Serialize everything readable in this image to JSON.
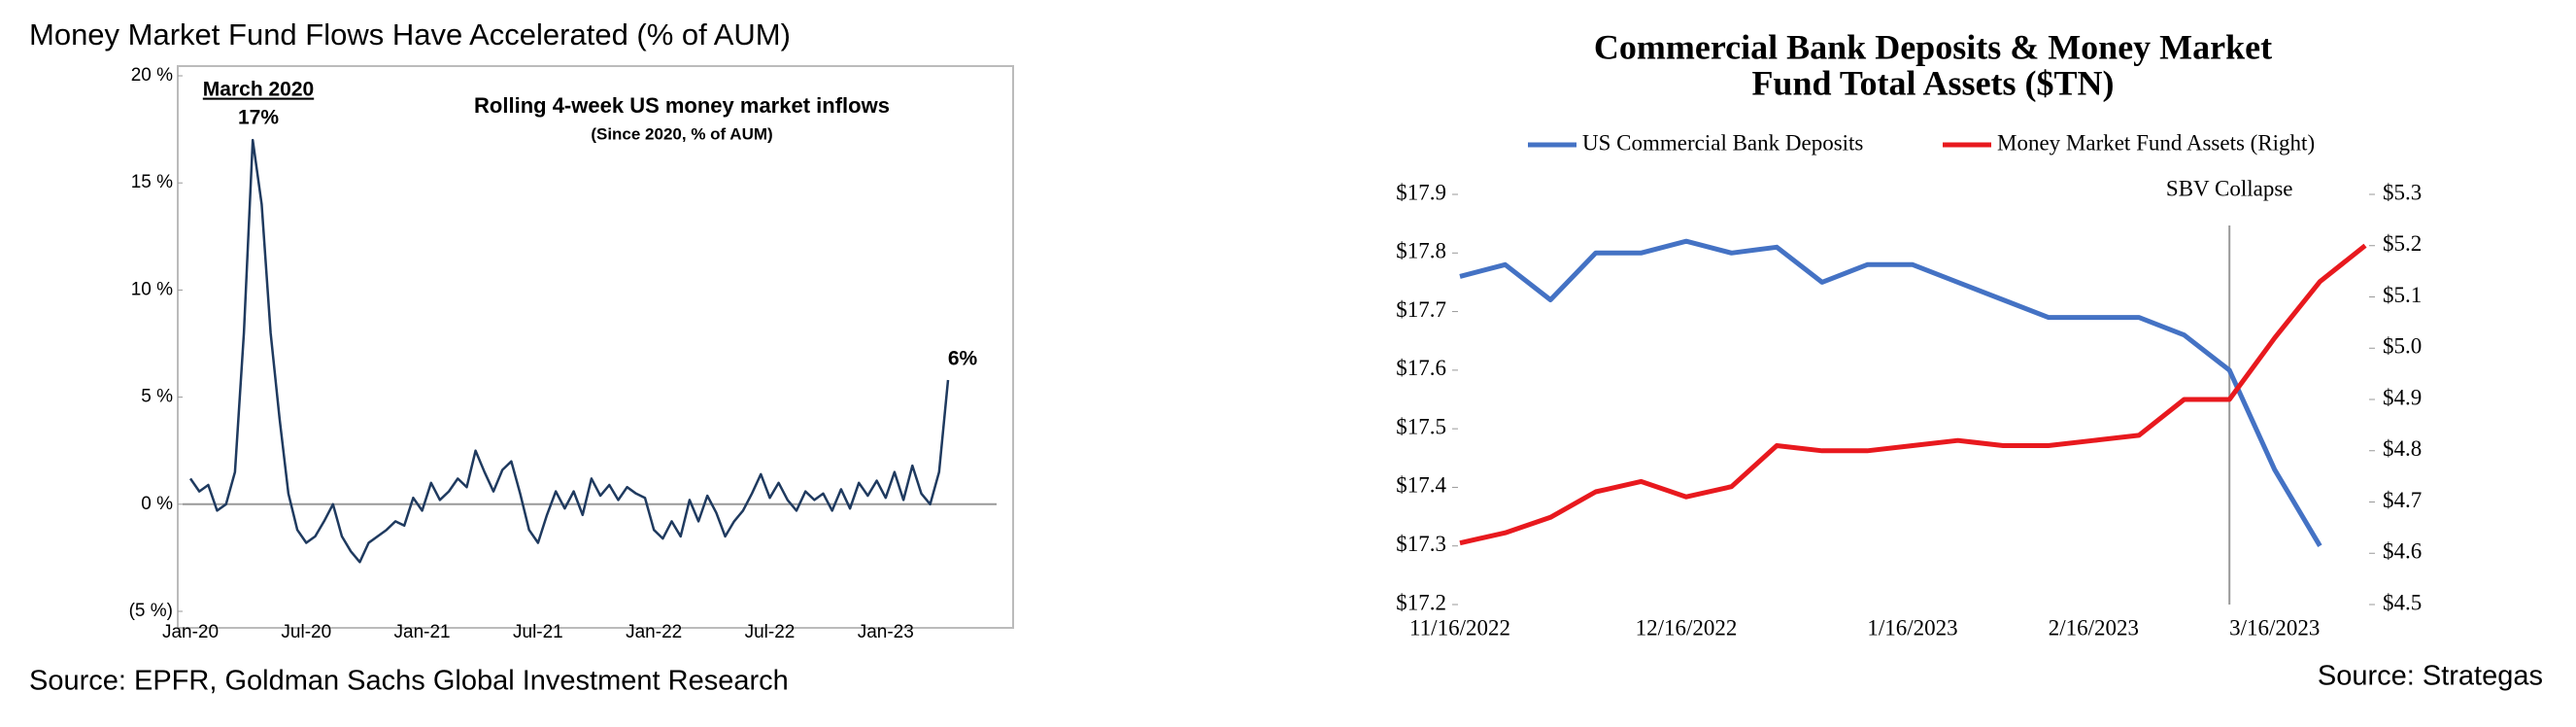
{
  "chart_data": [
    {
      "type": "line",
      "title": "Money Market Fund Flows Have Accelerated (% of AUM)",
      "inner_title": "Rolling 4-week US money market inflows",
      "inner_subtitle": "(Since 2020, % of AUM)",
      "annotations": [
        "March 2020",
        "17%",
        "6%"
      ],
      "source": "Source:  EPFR, Goldman Sachs Global Investment Research",
      "categories": [
        "Jan-20",
        null,
        null,
        null,
        null,
        null,
        null,
        null,
        null,
        null,
        null,
        null,
        null,
        "Jul-20",
        null,
        null,
        null,
        null,
        null,
        null,
        null,
        null,
        null,
        null,
        null,
        null,
        "Jan-21",
        null,
        null,
        null,
        null,
        null,
        null,
        null,
        null,
        null,
        null,
        null,
        null,
        "Jul-21",
        null,
        null,
        null,
        null,
        null,
        null,
        null,
        null,
        null,
        null,
        null,
        null,
        "Jan-22",
        null,
        null,
        null,
        null,
        null,
        null,
        null,
        null,
        null,
        null,
        null,
        null,
        "Jul-22",
        null,
        null,
        null,
        null,
        null,
        null,
        null,
        null,
        null,
        null,
        null,
        null,
        "Jan-23",
        null,
        null,
        null,
        null,
        null,
        null,
        null
      ],
      "values": [
        1.2,
        0.6,
        0.9,
        -0.3,
        0,
        1.5,
        8,
        17,
        14,
        8,
        4,
        0.5,
        -1.2,
        -1.8,
        -1.5,
        -0.8,
        0,
        -1.5,
        -2.2,
        -2.7,
        -1.8,
        -1.5,
        -1.2,
        -0.8,
        -1,
        0.3,
        -0.3,
        1,
        0.2,
        0.6,
        1.2,
        0.8,
        2.5,
        1.5,
        0.6,
        1.6,
        2,
        0.5,
        -1.2,
        -1.8,
        -0.5,
        0.6,
        -0.2,
        0.6,
        -0.5,
        1.2,
        0.4,
        0.9,
        0.2,
        0.8,
        0.5,
        0.3,
        -1.2,
        -1.6,
        -0.8,
        -1.5,
        0.2,
        -0.8,
        0.4,
        -0.4,
        -1.5,
        -0.8,
        -0.3,
        0.5,
        1.4,
        0.3,
        1,
        0.2,
        -0.3,
        0.6,
        0.2,
        0.5,
        -0.3,
        0.7,
        -0.2,
        1,
        0.4,
        1.1,
        0.3,
        1.5,
        0.2,
        1.8,
        0.5,
        0,
        1.5,
        5.8
      ],
      "color": "#1f3a5f",
      "ylim": [
        -5,
        20
      ],
      "yticks": [
        {
          "value": 20,
          "label": "20 %"
        },
        {
          "value": 15,
          "label": "15 %"
        },
        {
          "value": 10,
          "label": "10 %"
        },
        {
          "value": 5,
          "label": "5 %"
        },
        {
          "value": 0,
          "label": "0 %"
        },
        {
          "value": -5,
          "label": "(5 %)"
        }
      ],
      "grid": false
    },
    {
      "type": "line",
      "title": [
        "Commercial Bank Deposits & Money Market",
        "Fund Total Assets ($TN)"
      ],
      "source": "Source:  Strategas",
      "event": {
        "label": "SBV Collapse",
        "index": 17
      },
      "categories": [
        "11/16/2022",
        null,
        null,
        null,
        null,
        "12/16/2022",
        null,
        null,
        null,
        null,
        "1/16/2023",
        null,
        null,
        null,
        "2/16/2023",
        null,
        null,
        null,
        "3/16/2023",
        null,
        null
      ],
      "series": [
        {
          "name": "US Commercial Bank Deposits",
          "color": "#4472c4",
          "values": [
            17.76,
            17.78,
            17.72,
            17.8,
            17.8,
            17.82,
            17.8,
            17.81,
            17.75,
            17.78,
            17.78,
            17.75,
            17.72,
            17.69,
            17.69,
            17.69,
            17.66,
            17.6,
            17.43,
            17.3,
            null
          ]
        },
        {
          "name": "Money Market Fund Assets (Right)",
          "color": "#e8191e",
          "axis": "y2",
          "values": [
            4.62,
            4.64,
            4.67,
            4.72,
            4.74,
            4.71,
            4.73,
            4.81,
            4.8,
            4.8,
            4.81,
            4.82,
            4.81,
            4.81,
            4.82,
            4.83,
            4.9,
            4.9,
            5.02,
            5.13,
            5.2
          ]
        }
      ],
      "ylim": [
        17.2,
        17.9
      ],
      "yticks": [
        {
          "value": 17.9,
          "label": "$17.9"
        },
        {
          "value": 17.8,
          "label": "$17.8"
        },
        {
          "value": 17.7,
          "label": "$17.7"
        },
        {
          "value": 17.6,
          "label": "$17.6"
        },
        {
          "value": 17.5,
          "label": "$17.5"
        },
        {
          "value": 17.4,
          "label": "$17.4"
        },
        {
          "value": 17.3,
          "label": "$17.3"
        },
        {
          "value": 17.2,
          "label": "$17.2"
        }
      ],
      "y2lim": [
        4.5,
        5.3
      ],
      "y2ticks": [
        {
          "value": 5.3,
          "label": "$5.3"
        },
        {
          "value": 5.2,
          "label": "$5.2"
        },
        {
          "value": 5.1,
          "label": "$5.1"
        },
        {
          "value": 5.0,
          "label": "$5.0"
        },
        {
          "value": 4.9,
          "label": "$4.9"
        },
        {
          "value": 4.8,
          "label": "$4.8"
        },
        {
          "value": 4.7,
          "label": "$4.7"
        },
        {
          "value": 4.6,
          "label": "$4.6"
        },
        {
          "value": 4.5,
          "label": "$4.5"
        }
      ],
      "legend": "top",
      "grid": false
    }
  ]
}
